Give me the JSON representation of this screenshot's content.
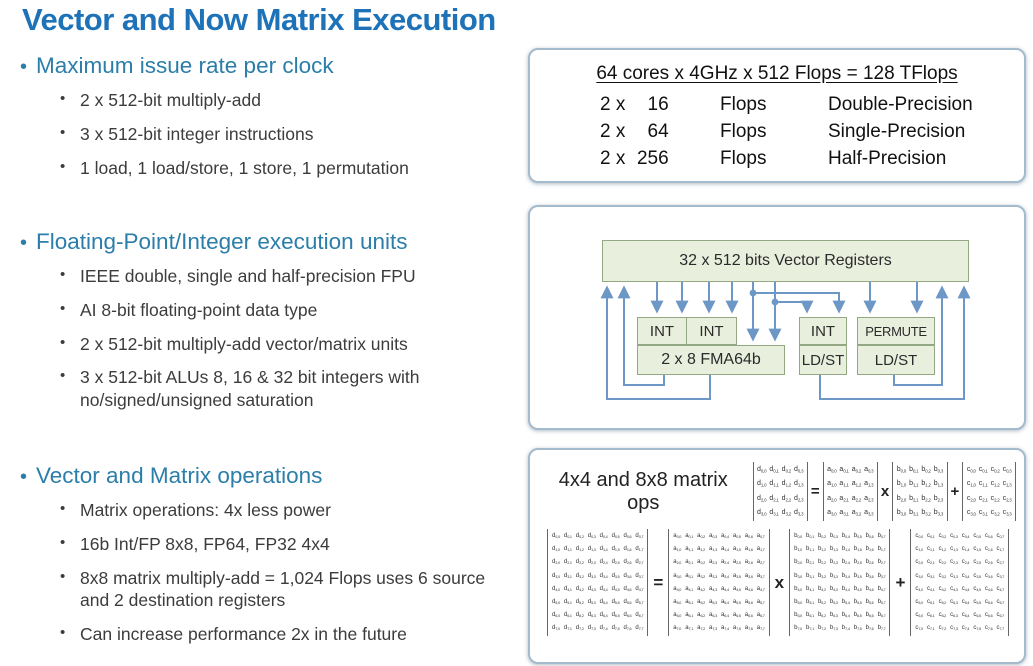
{
  "title": "Vector and Now Matrix Execution",
  "sections": [
    {
      "heading": "Maximum issue rate per clock",
      "items": [
        "2 x 512-bit multiply-add",
        "3 x 512-bit integer instructions",
        "1 load, 1 load/store, 1 store, 1 permutation"
      ]
    },
    {
      "heading": "Floating-Point/Integer execution units",
      "items": [
        "IEEE double, single and half-precision FPU",
        "AI 8-bit floating-point data type",
        "2 x 512-bit multiply-add vector/matrix units",
        "3 x 512-bit ALUs 8, 16 & 32 bit integers with no/signed/unsigned saturation"
      ]
    },
    {
      "heading": "Vector and Matrix operations",
      "items": [
        "Matrix operations: 4x less power",
        "16b Int/FP 8x8, FP64, FP32 4x4",
        "8x8 matrix multiply-add = 1,024 Flops uses 6 source and 2 destination registers",
        "Can increase performance 2x in the future"
      ]
    }
  ],
  "flops_box": {
    "heading": "64 cores x 4GHz x 512 Flops = 128 TFlops",
    "rows": [
      {
        "factor": "2 x",
        "count": "16",
        "unit": "Flops",
        "precision": "Double-Precision"
      },
      {
        "factor": "2 x",
        "count": "64",
        "unit": "Flops",
        "precision": "Single-Precision"
      },
      {
        "factor": "2 x",
        "count": "256",
        "unit": "Flops",
        "precision": "Half-Precision"
      }
    ]
  },
  "exec_diagram": {
    "register_label": "32 x 512 bits Vector Registers",
    "fma_group": {
      "int_left": "INT",
      "int_right": "INT",
      "fma": "2 x 8 FMA64b"
    },
    "ldst_group": {
      "int": "INT",
      "ldst": "LD/ST"
    },
    "permute_group": {
      "permute": "PERMUTE",
      "ldst": "LD/ST"
    }
  },
  "matrix_ops": {
    "label": "4x4 and 8x8 matrix ops",
    "operators": [
      "=",
      "x",
      "+"
    ],
    "rows": [
      {
        "size": 4,
        "letters": [
          "d",
          "a",
          "b",
          "c"
        ]
      },
      {
        "size": 8,
        "letters": [
          "d",
          "a",
          "b",
          "c"
        ]
      }
    ]
  },
  "colors": {
    "title_blue": "#1d72b8",
    "heading_teal": "#2b7ea9",
    "body_text": "#3c3c3c",
    "box_border": "#a4bacd",
    "unit_fill": "#e9efdd",
    "unit_border": "#94a983",
    "arrow_blue": "#6d97c6"
  }
}
